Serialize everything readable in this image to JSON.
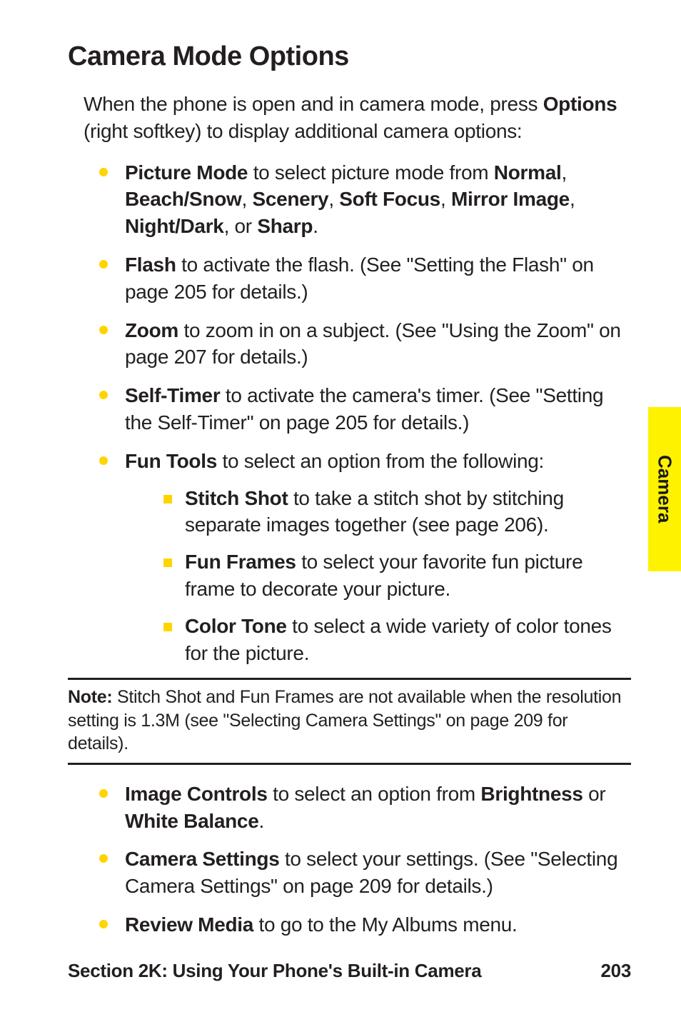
{
  "sideTab": "Camera",
  "heading": "Camera Mode Options",
  "intro": {
    "pre": "When the phone is open and in camera mode, press ",
    "bold": "Options",
    "post": " (right softkey) to display additional camera options:"
  },
  "items1": [
    {
      "segs": [
        {
          "b": true,
          "t": "Picture Mode"
        },
        {
          "t": " to select picture mode from "
        },
        {
          "b": true,
          "t": "Normal"
        },
        {
          "t": ", "
        },
        {
          "b": true,
          "t": "Beach/Snow"
        },
        {
          "t": ", "
        },
        {
          "b": true,
          "t": "Scenery"
        },
        {
          "t": ", "
        },
        {
          "b": true,
          "t": "Soft Focus"
        },
        {
          "t": ", "
        },
        {
          "b": true,
          "t": "Mirror Image"
        },
        {
          "t": ", "
        },
        {
          "b": true,
          "t": "Night/Dark"
        },
        {
          "t": ", or "
        },
        {
          "b": true,
          "t": "Sharp"
        },
        {
          "t": "."
        }
      ]
    },
    {
      "segs": [
        {
          "b": true,
          "t": "Flash"
        },
        {
          "t": " to activate the flash. (See \"Setting the Flash\" on page 205 for details.)"
        }
      ]
    },
    {
      "segs": [
        {
          "b": true,
          "t": "Zoom"
        },
        {
          "t": " to zoom in on a subject. (See \"Using the Zoom\" on page 207 for details.)"
        }
      ]
    },
    {
      "segs": [
        {
          "b": true,
          "t": "Self-Timer"
        },
        {
          "t": " to activate the camera's timer. (See \"Setting the Self-Timer\" on page 205 for details.)"
        }
      ]
    },
    {
      "segs": [
        {
          "b": true,
          "t": "Fun Tools"
        },
        {
          "t": " to select an option from the following:"
        }
      ],
      "sub": [
        {
          "segs": [
            {
              "b": true,
              "t": "Stitch Shot"
            },
            {
              "t": " to take a stitch shot by stitching separate images together (see page 206)."
            }
          ]
        },
        {
          "segs": [
            {
              "b": true,
              "t": "Fun Frames"
            },
            {
              "t": " to select your favorite fun picture frame to decorate your picture."
            }
          ]
        },
        {
          "segs": [
            {
              "b": true,
              "t": "Color Tone"
            },
            {
              "t": " to select a wide variety of color tones for the picture."
            }
          ]
        }
      ]
    }
  ],
  "note": {
    "label": "Note:",
    "text": " Stitch Shot and Fun Frames are not available when the resolution setting is 1.3M (see \"Selecting Camera Settings\" on page 209 for details)."
  },
  "items2": [
    {
      "segs": [
        {
          "b": true,
          "t": "Image Controls"
        },
        {
          "t": " to select an option from "
        },
        {
          "b": true,
          "t": "Brightness"
        },
        {
          "t": " or "
        },
        {
          "b": true,
          "t": "White Balance"
        },
        {
          "t": "."
        }
      ]
    },
    {
      "segs": [
        {
          "b": true,
          "t": "Camera Settings"
        },
        {
          "t": " to select your settings. (See \"Selecting Camera Settings\" on page 209 for details.)"
        }
      ]
    },
    {
      "segs": [
        {
          "b": true,
          "t": "Review Media"
        },
        {
          "t": " to go to the My Albums menu."
        }
      ]
    }
  ],
  "footer": {
    "section": "Section 2K: Using Your Phone's Built-in Camera",
    "page": "203"
  }
}
